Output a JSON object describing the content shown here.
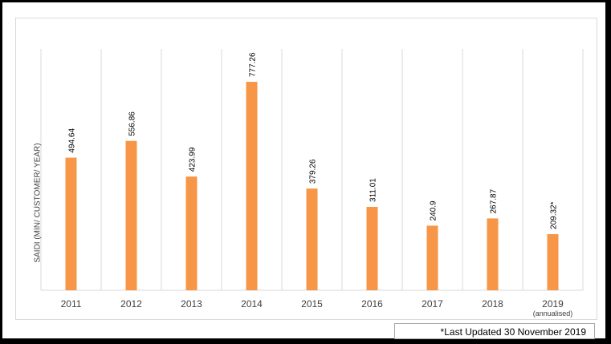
{
  "chart_data": {
    "type": "bar",
    "categories": [
      "2011",
      "2012",
      "2013",
      "2014",
      "2015",
      "2016",
      "2017",
      "2018",
      "2019"
    ],
    "category_notes": [
      "",
      "",
      "",
      "",
      "",
      "",
      "",
      "",
      "(annualised)"
    ],
    "values": [
      494.64,
      556.86,
      423.99,
      777.26,
      379.26,
      311.01,
      240.9,
      267.87,
      209.32
    ],
    "data_labels": [
      "494.64",
      "556.86",
      "423.99",
      "777.26",
      "379.26",
      "311.01",
      "240.9",
      "267.87",
      "209.32*"
    ],
    "ylabel": "SAIDI (MIN/ CUSTOMER/ YEAR)",
    "ylim": [
      0,
      900
    ],
    "bar_color": "#f79646",
    "grid": "vertical",
    "legend": "none"
  },
  "footnote": "*Last Updated 30 November 2019"
}
